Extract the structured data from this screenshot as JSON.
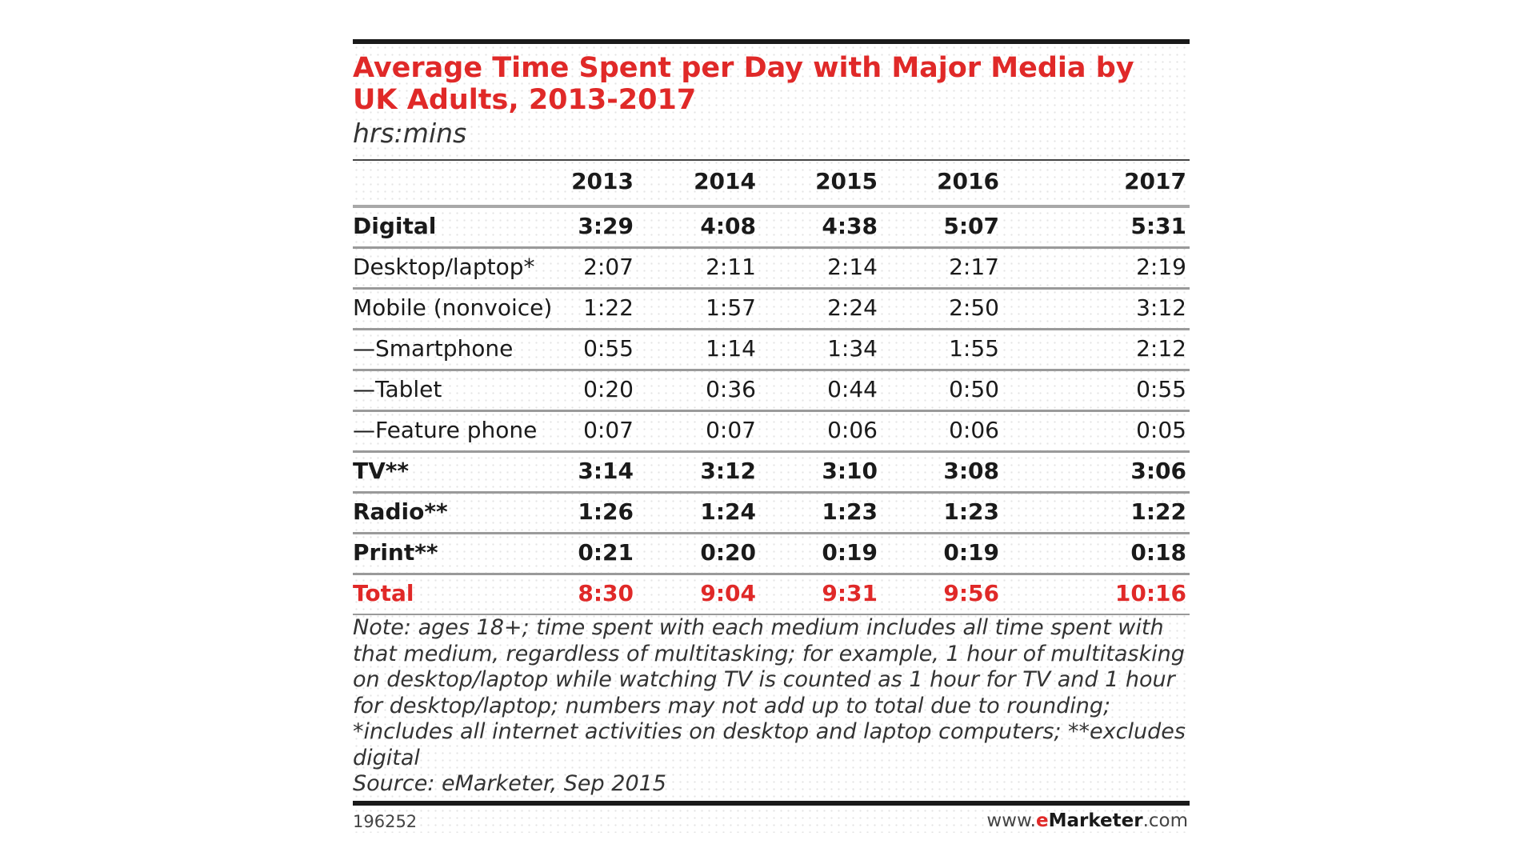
{
  "chart_data": {
    "type": "table",
    "title": "Average Time Spent per Day with Major Media by UK Adults, 2013-2017",
    "subtitle": "hrs:mins",
    "columns": [
      "2013",
      "2014",
      "2015",
      "2016",
      "2017"
    ],
    "rows": [
      {
        "label": "Digital",
        "values": [
          "3:29",
          "4:08",
          "4:38",
          "5:07",
          "5:31"
        ],
        "style": "bold"
      },
      {
        "label": "Desktop/laptop*",
        "values": [
          "2:07",
          "2:11",
          "2:14",
          "2:17",
          "2:19"
        ],
        "style": "normal"
      },
      {
        "label": "Mobile (nonvoice)",
        "values": [
          "1:22",
          "1:57",
          "2:24",
          "2:50",
          "3:12"
        ],
        "style": "normal"
      },
      {
        "label": "—Smartphone",
        "values": [
          "0:55",
          "1:14",
          "1:34",
          "1:55",
          "2:12"
        ],
        "style": "normal"
      },
      {
        "label": "—Tablet",
        "values": [
          "0:20",
          "0:36",
          "0:44",
          "0:50",
          "0:55"
        ],
        "style": "normal"
      },
      {
        "label": "—Feature phone",
        "values": [
          "0:07",
          "0:07",
          "0:06",
          "0:06",
          "0:05"
        ],
        "style": "normal"
      },
      {
        "label": "TV**",
        "values": [
          "3:14",
          "3:12",
          "3:10",
          "3:08",
          "3:06"
        ],
        "style": "bold"
      },
      {
        "label": "Radio**",
        "values": [
          "1:26",
          "1:24",
          "1:23",
          "1:23",
          "1:22"
        ],
        "style": "bold"
      },
      {
        "label": "Print**",
        "values": [
          "0:21",
          "0:20",
          "0:19",
          "0:19",
          "0:18"
        ],
        "style": "bold"
      },
      {
        "label": "Total",
        "values": [
          "8:30",
          "9:04",
          "9:31",
          "9:56",
          "10:16"
        ],
        "style": "total"
      }
    ],
    "note": "Note: ages 18+; time spent with each medium includes all time spent with that medium, regardless of multitasking; for example, 1 hour of multitasking on desktop/laptop while watching TV is counted as 1 hour for TV and 1 hour for desktop/laptop; numbers may not add up to total due to rounding; *includes all internet activities on desktop and laptop computers; **excludes digital",
    "source": "Source: eMarketer, Sep 2015"
  },
  "footer": {
    "chart_id": "196252",
    "brand_prefix": "www.",
    "brand_e": "e",
    "brand_name": "Marketer",
    "brand_suffix": ".com"
  },
  "colors": {
    "accent": "#e02928",
    "text": "#1a1a1a",
    "rule": "#9a9a9a"
  }
}
